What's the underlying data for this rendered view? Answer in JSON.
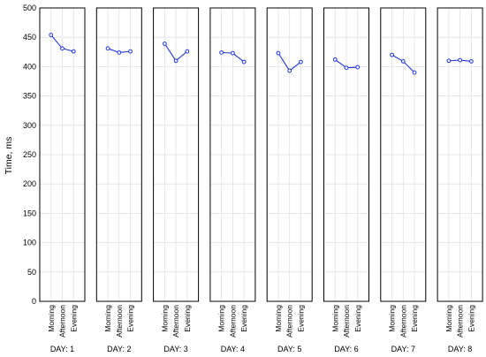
{
  "chart_data": {
    "type": "line",
    "layout": "small-multiples",
    "ylabel": "Time, ms",
    "ylim": [
      0,
      500
    ],
    "yticks": [
      0,
      50,
      100,
      150,
      200,
      250,
      300,
      350,
      400,
      450,
      500
    ],
    "categories": [
      "Morning",
      "Afternoon",
      "Evening"
    ],
    "grid": true,
    "series_color": "#1f35d8",
    "panels": [
      {
        "label": "DAY: 1",
        "values": [
          454,
          431,
          426
        ]
      },
      {
        "label": "DAY: 2",
        "values": [
          431,
          424,
          426
        ]
      },
      {
        "label": "DAY: 3",
        "values": [
          439,
          410,
          426
        ]
      },
      {
        "label": "DAY: 4",
        "values": [
          424,
          423,
          408
        ]
      },
      {
        "label": "DAY: 5",
        "values": [
          423,
          393,
          408
        ]
      },
      {
        "label": "DAY: 6",
        "values": [
          412,
          398,
          399
        ]
      },
      {
        "label": "DAY: 7",
        "values": [
          420,
          409,
          390
        ]
      },
      {
        "label": "DAY: 8",
        "values": [
          410,
          411,
          409
        ]
      }
    ]
  }
}
